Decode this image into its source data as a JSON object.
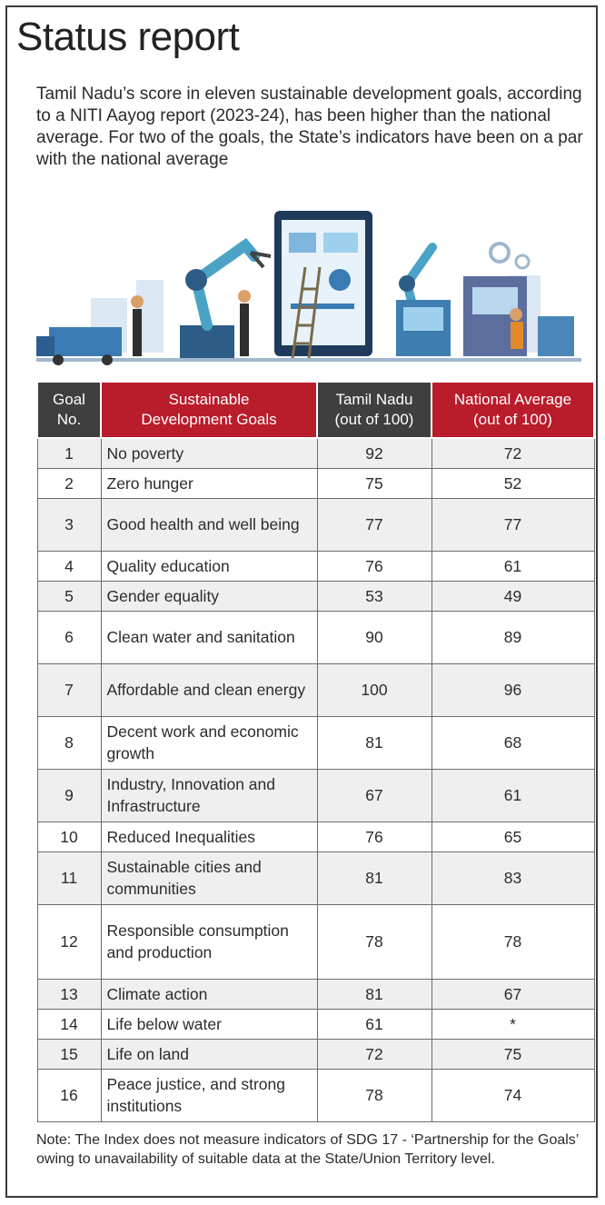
{
  "title": "Status report",
  "intro": "Tamil Nadu’s score in eleven sustainable development goals, according to a NITI Aayog report (2023-24), has been higher than the national average. For two of the goals, the State’s indicators have been on a par with the national average",
  "colors": {
    "header_dark": "#3f3f3f",
    "header_red": "#b91c2b",
    "row_alt": "#efefef"
  },
  "chart_data": {
    "type": "table",
    "columns": [
      "Goal No.",
      "Sustainable Development Goals",
      "Tamil Nadu (out of 100)",
      "National Average (out of 100)"
    ],
    "rows": [
      {
        "no": "1",
        "goal": "No poverty",
        "tn": "92",
        "nat": "72"
      },
      {
        "no": "2",
        "goal": "Zero hunger",
        "tn": "75",
        "nat": "52"
      },
      {
        "no": "3",
        "goal": "Good health and well being",
        "tn": "77",
        "nat": "77"
      },
      {
        "no": "4",
        "goal": "Quality education",
        "tn": "76",
        "nat": "61"
      },
      {
        "no": "5",
        "goal": "Gender equality",
        "tn": "53",
        "nat": "49"
      },
      {
        "no": "6",
        "goal": "Clean water and sanitation",
        "tn": "90",
        "nat": "89"
      },
      {
        "no": "7",
        "goal": "Affordable and clean energy",
        "tn": "100",
        "nat": "96"
      },
      {
        "no": "8",
        "goal": "Decent work and economic growth",
        "tn": "81",
        "nat": "68"
      },
      {
        "no": "9",
        "goal": "Industry, Innovation and Infrastructure",
        "tn": "67",
        "nat": "61"
      },
      {
        "no": "10",
        "goal": "Reduced Inequalities",
        "tn": "76",
        "nat": "65"
      },
      {
        "no": "11",
        "goal": "Sustainable cities and communities",
        "tn": "81",
        "nat": "83"
      },
      {
        "no": "12",
        "goal": "Responsible consumption and production",
        "tn": "78",
        "nat": "78"
      },
      {
        "no": "13",
        "goal": "Climate action",
        "tn": "81",
        "nat": "67"
      },
      {
        "no": "14",
        "goal": "Life below water",
        "tn": "61",
        "nat": "*"
      },
      {
        "no": "15",
        "goal": "Life on land",
        "tn": "72",
        "nat": "75"
      },
      {
        "no": "16",
        "goal": "Peace justice, and strong institutions",
        "tn": "78",
        "nat": "74"
      }
    ]
  },
  "note": "Note: The Index does not measure indicators of SDG 17 - ‘Partnership for the Goals’ owing to unavailability of suitable data at the State/Union Territory level."
}
